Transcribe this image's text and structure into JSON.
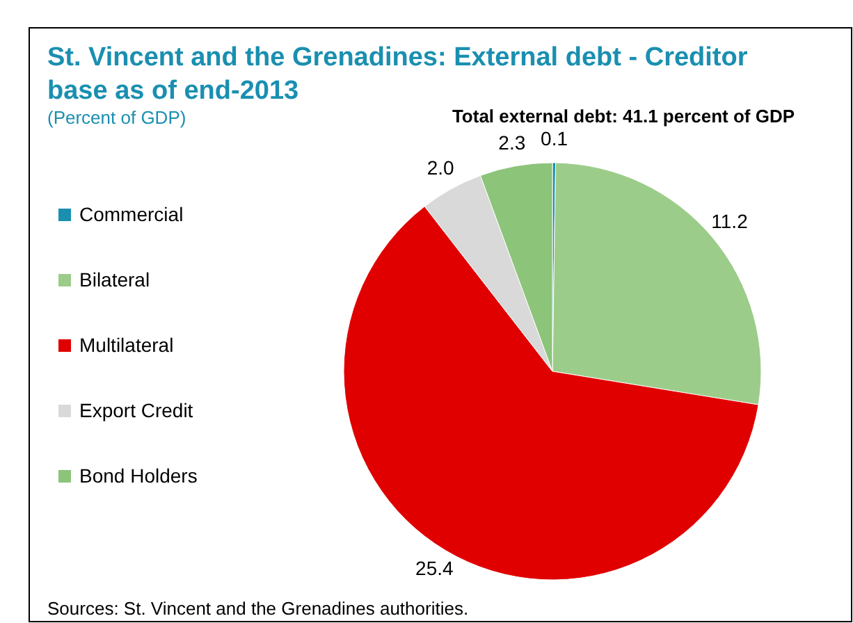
{
  "chart_data": {
    "type": "pie",
    "title": "St. Vincent and the Grenadines: External debt - Creditor base as of end-2013",
    "subtitle": "(Percent of GDP)",
    "categories": [
      "Commercial",
      "Bilateral",
      "Multilateral",
      "Export Credit",
      "Bond Holders"
    ],
    "values": [
      0.1,
      11.2,
      25.4,
      2.0,
      2.3
    ],
    "colors": [
      "#1a8fb0",
      "#9ccc8a",
      "#e00000",
      "#d9d9d9",
      "#8cc47a"
    ],
    "value_labels": [
      "0.1",
      "11.2",
      "25.4",
      "2.0",
      "2.3"
    ],
    "legend": "left",
    "annotations": [
      "Total external debt: 41.1 percent of GDP",
      "Sources: St. Vincent and the Grenadines authorities."
    ]
  }
}
